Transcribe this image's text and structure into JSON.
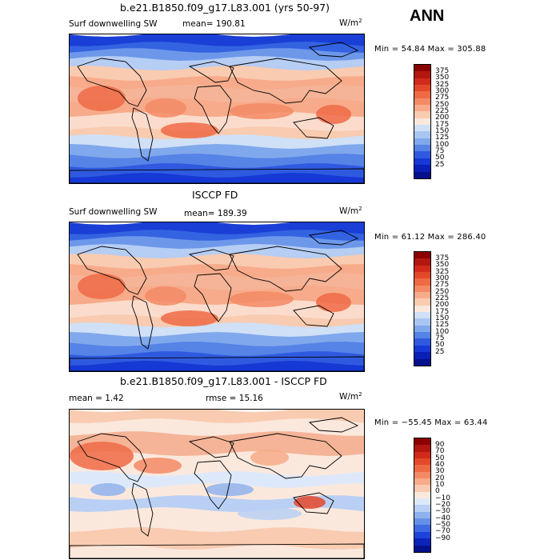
{
  "season": "ANN",
  "panels": [
    {
      "title": "b.e21.B1850.f09_g17.L83.001 (yrs 50-97)",
      "left_label": "Surf downwelling SW",
      "mid_label": "mean= 190.81",
      "units": "W/m",
      "units_sup": "2",
      "minmax": "Min =  54.84 Max = 305.88",
      "kind": "abs"
    },
    {
      "title": "ISCCP FD",
      "left_label": "Surf downwelling SW",
      "mid_label": "mean= 189.39",
      "units": "W/m",
      "units_sup": "2",
      "minmax": "Min =  61.12 Max = 286.40",
      "kind": "abs"
    },
    {
      "title": "b.e21.B1850.f09_g17.L83.001 - ISCCP FD",
      "left_label": "mean =   1.42",
      "mid_label": "rmse =  15.16",
      "units": "W/m",
      "units_sup": "2",
      "minmax": "Min = −55.45 Max =  63.44",
      "kind": "diff"
    }
  ],
  "colorbars": {
    "abs": {
      "labels": [
        "375",
        "350",
        "325",
        "300",
        "275",
        "250",
        "225",
        "200",
        "175",
        "150",
        "125",
        "100",
        "75",
        "50",
        "25"
      ],
      "colors": [
        "#8b0000",
        "#b2170f",
        "#d12a1a",
        "#e4482a",
        "#ee6a45",
        "#f38a65",
        "#f7ab8a",
        "#f9cbb0",
        "#fbe8dd",
        "#cfe0f7",
        "#a9c6f2",
        "#80a8ec",
        "#5583e6",
        "#2f5ae0",
        "#1638d4",
        "#091fb6",
        "#04108c"
      ]
    },
    "diff": {
      "labels": [
        "90",
        "70",
        "50",
        "40",
        "30",
        "20",
        "10",
        "0",
        "−10",
        "−20",
        "−30",
        "−40",
        "−50",
        "−70",
        "−90"
      ],
      "colors": [
        "#8b0000",
        "#b2170f",
        "#d12a1a",
        "#e4482a",
        "#ee6a45",
        "#f38a65",
        "#f7ab8a",
        "#f9cbb0",
        "#fbe8dd",
        "#dde9fa",
        "#b9d0f4",
        "#8fb2ee",
        "#6690e8",
        "#3e6ae2",
        "#1d44d8",
        "#0b24ba",
        "#04108c"
      ]
    }
  }
}
